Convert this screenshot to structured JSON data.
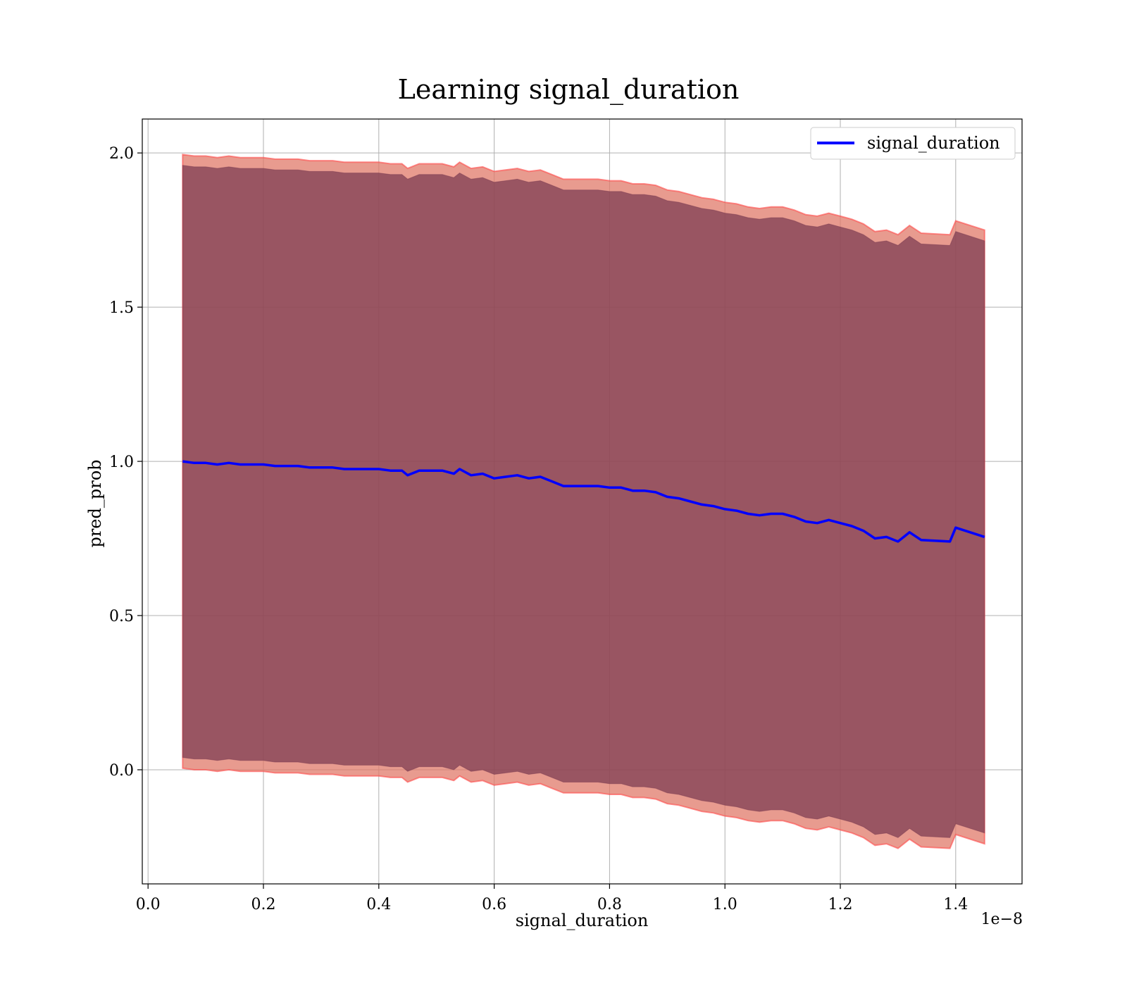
{
  "chart_data": {
    "type": "line",
    "title": "Learning signal_duration",
    "xlabel": "signal_duration",
    "ylabel": "pred_prob",
    "x_offset_label": "1e−8",
    "x_tick_labels": [
      "0.0",
      "0.2",
      "0.4",
      "0.6",
      "0.8",
      "1.0",
      "1.2",
      "1.4"
    ],
    "y_tick_labels": [
      "0.0",
      "0.5",
      "1.0",
      "1.5",
      "2.0"
    ],
    "xlim": [
      -0.01,
      1.515
    ],
    "ylim": [
      -0.37,
      2.11
    ],
    "grid": true,
    "legend_position": "top-right",
    "colors": {
      "line": "#0000ff",
      "band_outer": "#e07a6a",
      "band_inner": "#7a3a50",
      "band_outer_edge": "#ff4a4a"
    },
    "series": [
      {
        "name": "signal_duration",
        "x": [
          0.06,
          0.08,
          0.1,
          0.12,
          0.14,
          0.16,
          0.18,
          0.2,
          0.22,
          0.24,
          0.26,
          0.28,
          0.3,
          0.32,
          0.34,
          0.36,
          0.38,
          0.4,
          0.42,
          0.44,
          0.45,
          0.47,
          0.49,
          0.51,
          0.53,
          0.54,
          0.56,
          0.58,
          0.6,
          0.62,
          0.64,
          0.66,
          0.68,
          0.7,
          0.72,
          0.74,
          0.76,
          0.78,
          0.8,
          0.82,
          0.84,
          0.86,
          0.88,
          0.9,
          0.92,
          0.94,
          0.96,
          0.98,
          1.0,
          1.02,
          1.04,
          1.06,
          1.08,
          1.1,
          1.12,
          1.14,
          1.16,
          1.18,
          1.2,
          1.22,
          1.24,
          1.26,
          1.28,
          1.3,
          1.32,
          1.34,
          1.39,
          1.4,
          1.45
        ],
        "y": [
          1.0,
          0.995,
          0.995,
          0.99,
          0.995,
          0.99,
          0.99,
          0.99,
          0.985,
          0.985,
          0.985,
          0.98,
          0.98,
          0.98,
          0.975,
          0.975,
          0.975,
          0.975,
          0.97,
          0.97,
          0.955,
          0.97,
          0.97,
          0.97,
          0.96,
          0.975,
          0.955,
          0.96,
          0.945,
          0.95,
          0.955,
          0.945,
          0.95,
          0.935,
          0.92,
          0.92,
          0.92,
          0.92,
          0.915,
          0.915,
          0.905,
          0.905,
          0.9,
          0.885,
          0.88,
          0.87,
          0.86,
          0.855,
          0.845,
          0.84,
          0.83,
          0.825,
          0.83,
          0.83,
          0.82,
          0.805,
          0.8,
          0.81,
          0.8,
          0.79,
          0.775,
          0.75,
          0.755,
          0.74,
          0.77,
          0.745,
          0.74,
          0.785,
          0.755
        ],
        "band_inner_half": 0.96,
        "band_outer_half": 0.995
      }
    ]
  }
}
